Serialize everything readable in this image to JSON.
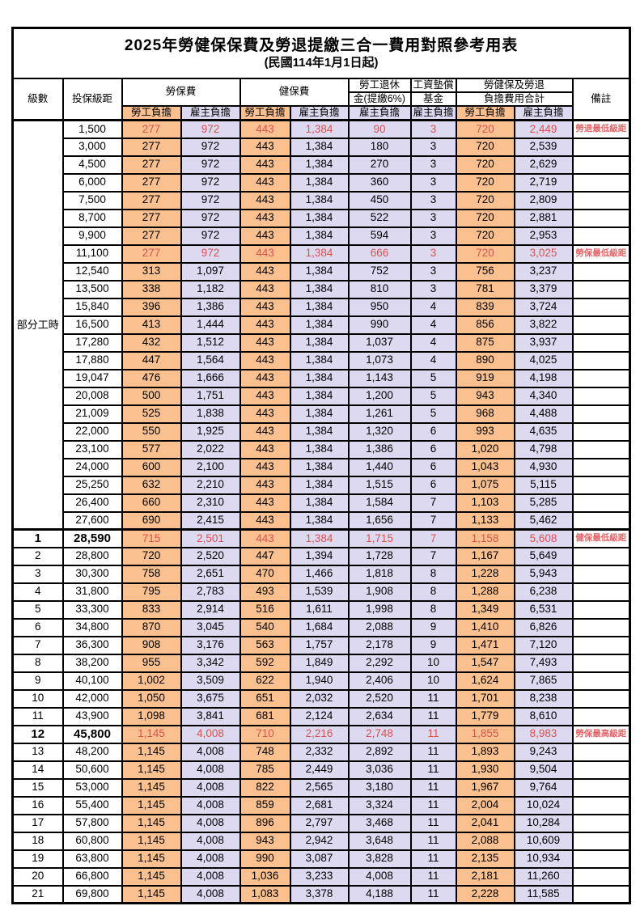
{
  "title": "2025年勞健保保費及勞退提繳三合一費用對照參考用表",
  "subtitle": "(民國114年1月1日起)",
  "colors": {
    "employee_fill": "#fac090",
    "employer_fill": "#dcd9f0",
    "highlight_red": "#d9534f",
    "remark_red": "#e06666",
    "border": "#000000"
  },
  "header": {
    "level": "級數",
    "bracket": "投保級距",
    "labor_insurance": "勞保費",
    "health_insurance": "健保費",
    "pension_line1": "勞工退休",
    "pension_line2": "金(提繳6%)",
    "wage_fund_line1": "工資墊償",
    "wage_fund_line2": "基金",
    "total_line1": "勞健保及勞退",
    "total_line2": "負擔費用合計",
    "remark": "備註",
    "employee_label": "勞工負擔",
    "employer_label": "雇主負擔"
  },
  "table": {
    "part_time_label": "部分工時",
    "part_time_rowspan": 23,
    "rows": [
      {
        "level": null,
        "bracket": "1,500",
        "values": [
          "277",
          "972",
          "443",
          "1,384",
          "90",
          "3",
          "720",
          "2,449"
        ],
        "remark": "勞退最低級距",
        "hl": true
      },
      {
        "level": null,
        "bracket": "3,000",
        "values": [
          "277",
          "972",
          "443",
          "1,384",
          "180",
          "3",
          "720",
          "2,539"
        ],
        "remark": ""
      },
      {
        "level": null,
        "bracket": "4,500",
        "values": [
          "277",
          "972",
          "443",
          "1,384",
          "270",
          "3",
          "720",
          "2,629"
        ],
        "remark": ""
      },
      {
        "level": null,
        "bracket": "6,000",
        "values": [
          "277",
          "972",
          "443",
          "1,384",
          "360",
          "3",
          "720",
          "2,719"
        ],
        "remark": ""
      },
      {
        "level": null,
        "bracket": "7,500",
        "values": [
          "277",
          "972",
          "443",
          "1,384",
          "450",
          "3",
          "720",
          "2,809"
        ],
        "remark": ""
      },
      {
        "level": null,
        "bracket": "8,700",
        "values": [
          "277",
          "972",
          "443",
          "1,384",
          "522",
          "3",
          "720",
          "2,881"
        ],
        "remark": ""
      },
      {
        "level": null,
        "bracket": "9,900",
        "values": [
          "277",
          "972",
          "443",
          "1,384",
          "594",
          "3",
          "720",
          "2,953"
        ],
        "remark": ""
      },
      {
        "level": null,
        "bracket": "11,100",
        "values": [
          "277",
          "972",
          "443",
          "1,384",
          "666",
          "3",
          "720",
          "3,025"
        ],
        "remark": "勞保最低級距",
        "hl": true
      },
      {
        "level": null,
        "bracket": "12,540",
        "values": [
          "313",
          "1,097",
          "443",
          "1,384",
          "752",
          "3",
          "756",
          "3,237"
        ],
        "remark": ""
      },
      {
        "level": null,
        "bracket": "13,500",
        "values": [
          "338",
          "1,182",
          "443",
          "1,384",
          "810",
          "3",
          "781",
          "3,379"
        ],
        "remark": ""
      },
      {
        "level": null,
        "bracket": "15,840",
        "values": [
          "396",
          "1,386",
          "443",
          "1,384",
          "950",
          "4",
          "839",
          "3,724"
        ],
        "remark": ""
      },
      {
        "level": null,
        "bracket": "16,500",
        "values": [
          "413",
          "1,444",
          "443",
          "1,384",
          "990",
          "4",
          "856",
          "3,822"
        ],
        "remark": ""
      },
      {
        "level": null,
        "bracket": "17,280",
        "values": [
          "432",
          "1,512",
          "443",
          "1,384",
          "1,037",
          "4",
          "875",
          "3,937"
        ],
        "remark": ""
      },
      {
        "level": null,
        "bracket": "17,880",
        "values": [
          "447",
          "1,564",
          "443",
          "1,384",
          "1,073",
          "4",
          "890",
          "4,025"
        ],
        "remark": ""
      },
      {
        "level": null,
        "bracket": "19,047",
        "values": [
          "476",
          "1,666",
          "443",
          "1,384",
          "1,143",
          "5",
          "919",
          "4,198"
        ],
        "remark": ""
      },
      {
        "level": null,
        "bracket": "20,008",
        "values": [
          "500",
          "1,751",
          "443",
          "1,384",
          "1,200",
          "5",
          "943",
          "4,340"
        ],
        "remark": ""
      },
      {
        "level": null,
        "bracket": "21,009",
        "values": [
          "525",
          "1,838",
          "443",
          "1,384",
          "1,261",
          "5",
          "968",
          "4,488"
        ],
        "remark": ""
      },
      {
        "level": null,
        "bracket": "22,000",
        "values": [
          "550",
          "1,925",
          "443",
          "1,384",
          "1,320",
          "6",
          "993",
          "4,635"
        ],
        "remark": ""
      },
      {
        "level": null,
        "bracket": "23,100",
        "values": [
          "577",
          "2,022",
          "443",
          "1,384",
          "1,386",
          "6",
          "1,020",
          "4,798"
        ],
        "remark": ""
      },
      {
        "level": null,
        "bracket": "24,000",
        "values": [
          "600",
          "2,100",
          "443",
          "1,384",
          "1,440",
          "6",
          "1,043",
          "4,930"
        ],
        "remark": ""
      },
      {
        "level": null,
        "bracket": "25,250",
        "values": [
          "632",
          "2,210",
          "443",
          "1,384",
          "1,515",
          "6",
          "1,075",
          "5,115"
        ],
        "remark": ""
      },
      {
        "level": null,
        "bracket": "26,400",
        "values": [
          "660",
          "2,310",
          "443",
          "1,384",
          "1,584",
          "7",
          "1,103",
          "5,285"
        ],
        "remark": ""
      },
      {
        "level": null,
        "bracket": "27,600",
        "values": [
          "690",
          "2,415",
          "443",
          "1,384",
          "1,656",
          "7",
          "1,133",
          "5,462"
        ],
        "remark": ""
      },
      {
        "level": "1",
        "bracket": "28,590",
        "values": [
          "715",
          "2,501",
          "443",
          "1,384",
          "1,715",
          "7",
          "1,158",
          "5,608"
        ],
        "remark": "健保最低級距",
        "hl": true,
        "bold": true,
        "thick_top": true
      },
      {
        "level": "2",
        "bracket": "28,800",
        "values": [
          "720",
          "2,520",
          "447",
          "1,394",
          "1,728",
          "7",
          "1,167",
          "5,649"
        ],
        "remark": ""
      },
      {
        "level": "3",
        "bracket": "30,300",
        "values": [
          "758",
          "2,651",
          "470",
          "1,466",
          "1,818",
          "8",
          "1,228",
          "5,943"
        ],
        "remark": ""
      },
      {
        "level": "4",
        "bracket": "31,800",
        "values": [
          "795",
          "2,783",
          "493",
          "1,539",
          "1,908",
          "8",
          "1,288",
          "6,238"
        ],
        "remark": ""
      },
      {
        "level": "5",
        "bracket": "33,300",
        "values": [
          "833",
          "2,914",
          "516",
          "1,611",
          "1,998",
          "8",
          "1,349",
          "6,531"
        ],
        "remark": ""
      },
      {
        "level": "6",
        "bracket": "34,800",
        "values": [
          "870",
          "3,045",
          "540",
          "1,684",
          "2,088",
          "9",
          "1,410",
          "6,826"
        ],
        "remark": ""
      },
      {
        "level": "7",
        "bracket": "36,300",
        "values": [
          "908",
          "3,176",
          "563",
          "1,757",
          "2,178",
          "9",
          "1,471",
          "7,120"
        ],
        "remark": ""
      },
      {
        "level": "8",
        "bracket": "38,200",
        "values": [
          "955",
          "3,342",
          "592",
          "1,849",
          "2,292",
          "10",
          "1,547",
          "7,493"
        ],
        "remark": ""
      },
      {
        "level": "9",
        "bracket": "40,100",
        "values": [
          "1,002",
          "3,509",
          "622",
          "1,940",
          "2,406",
          "10",
          "1,624",
          "7,865"
        ],
        "remark": ""
      },
      {
        "level": "10",
        "bracket": "42,000",
        "values": [
          "1,050",
          "3,675",
          "651",
          "2,032",
          "2,520",
          "11",
          "1,701",
          "8,238"
        ],
        "remark": ""
      },
      {
        "level": "11",
        "bracket": "43,900",
        "values": [
          "1,098",
          "3,841",
          "681",
          "2,124",
          "2,634",
          "11",
          "1,779",
          "8,610"
        ],
        "remark": ""
      },
      {
        "level": "12",
        "bracket": "45,800",
        "values": [
          "1,145",
          "4,008",
          "710",
          "2,216",
          "2,748",
          "11",
          "1,855",
          "8,983"
        ],
        "remark": "勞保最高級距",
        "hl": true,
        "bold": true
      },
      {
        "level": "13",
        "bracket": "48,200",
        "values": [
          "1,145",
          "4,008",
          "748",
          "2,332",
          "2,892",
          "11",
          "1,893",
          "9,243"
        ],
        "remark": ""
      },
      {
        "level": "14",
        "bracket": "50,600",
        "values": [
          "1,145",
          "4,008",
          "785",
          "2,449",
          "3,036",
          "11",
          "1,930",
          "9,504"
        ],
        "remark": ""
      },
      {
        "level": "15",
        "bracket": "53,000",
        "values": [
          "1,145",
          "4,008",
          "822",
          "2,565",
          "3,180",
          "11",
          "1,967",
          "9,764"
        ],
        "remark": ""
      },
      {
        "level": "16",
        "bracket": "55,400",
        "values": [
          "1,145",
          "4,008",
          "859",
          "2,681",
          "3,324",
          "11",
          "2,004",
          "10,024"
        ],
        "remark": ""
      },
      {
        "level": "17",
        "bracket": "57,800",
        "values": [
          "1,145",
          "4,008",
          "896",
          "2,797",
          "3,468",
          "11",
          "2,041",
          "10,284"
        ],
        "remark": ""
      },
      {
        "level": "18",
        "bracket": "60,800",
        "values": [
          "1,145",
          "4,008",
          "943",
          "2,942",
          "3,648",
          "11",
          "2,088",
          "10,609"
        ],
        "remark": ""
      },
      {
        "level": "19",
        "bracket": "63,800",
        "values": [
          "1,145",
          "4,008",
          "990",
          "3,087",
          "3,828",
          "11",
          "2,135",
          "10,934"
        ],
        "remark": ""
      },
      {
        "level": "20",
        "bracket": "66,800",
        "values": [
          "1,145",
          "4,008",
          "1,036",
          "3,233",
          "4,008",
          "11",
          "2,181",
          "11,260"
        ],
        "remark": ""
      },
      {
        "level": "21",
        "bracket": "69,800",
        "values": [
          "1,145",
          "4,008",
          "1,083",
          "3,378",
          "4,188",
          "11",
          "2,228",
          "11,585"
        ],
        "remark": ""
      }
    ]
  }
}
